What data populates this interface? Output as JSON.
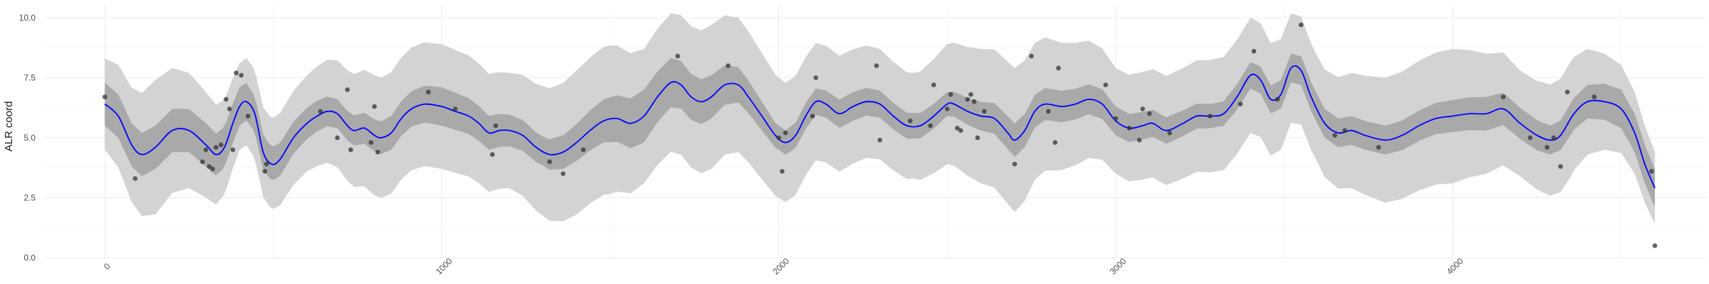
{
  "chart_data": {
    "type": "line",
    "title": "",
    "xlabel": "",
    "ylabel": "ALR coord",
    "xlim": [
      -180,
      4750
    ],
    "ylim": [
      0,
      10.5
    ],
    "grid": true,
    "legend": "none",
    "x_ticks": [
      0,
      1000,
      2000,
      3000,
      4000
    ],
    "x_tick_labels": [
      "0",
      "1000",
      "2000",
      "3000",
      "4000"
    ],
    "y_ticks": [
      0,
      2.5,
      5,
      7.5,
      10
    ],
    "y_tick_labels": [
      "0.0",
      "2.5",
      "5.0",
      "7.5",
      "10.0"
    ],
    "colors": {
      "mean_line": "#0000ff",
      "inner_band": "#a9a9a9",
      "outer_band": "#d3d3d3",
      "points": "#333333",
      "grid_major": "#ebebeb",
      "grid_minor": "#f5f5f5"
    },
    "mean_curve": [
      [
        0,
        6.4
      ],
      [
        40,
        5.9
      ],
      [
        80,
        4.7
      ],
      [
        110,
        4.3
      ],
      [
        150,
        4.6
      ],
      [
        200,
        5.3
      ],
      [
        250,
        5.3
      ],
      [
        300,
        4.7
      ],
      [
        330,
        4.3
      ],
      [
        355,
        4.6
      ],
      [
        380,
        5.6
      ],
      [
        400,
        6.3
      ],
      [
        420,
        6.5
      ],
      [
        445,
        6.0
      ],
      [
        470,
        4.4
      ],
      [
        495,
        3.9
      ],
      [
        520,
        4.1
      ],
      [
        560,
        5.0
      ],
      [
        600,
        5.6
      ],
      [
        630,
        5.9
      ],
      [
        660,
        6.1
      ],
      [
        690,
        6.0
      ],
      [
        720,
        5.5
      ],
      [
        740,
        5.3
      ],
      [
        770,
        5.4
      ],
      [
        800,
        5.1
      ],
      [
        820,
        5.0
      ],
      [
        850,
        5.2
      ],
      [
        880,
        5.8
      ],
      [
        910,
        6.2
      ],
      [
        950,
        6.4
      ],
      [
        1000,
        6.3
      ],
      [
        1040,
        6.1
      ],
      [
        1080,
        5.9
      ],
      [
        1110,
        5.6
      ],
      [
        1140,
        5.2
      ],
      [
        1170,
        5.3
      ],
      [
        1200,
        5.3
      ],
      [
        1240,
        5.1
      ],
      [
        1280,
        4.6
      ],
      [
        1320,
        4.3
      ],
      [
        1360,
        4.4
      ],
      [
        1400,
        4.8
      ],
      [
        1440,
        5.3
      ],
      [
        1480,
        5.7
      ],
      [
        1520,
        5.8
      ],
      [
        1560,
        5.6
      ],
      [
        1600,
        5.9
      ],
      [
        1640,
        6.7
      ],
      [
        1680,
        7.3
      ],
      [
        1710,
        7.2
      ],
      [
        1740,
        6.7
      ],
      [
        1770,
        6.5
      ],
      [
        1800,
        6.7
      ],
      [
        1840,
        7.2
      ],
      [
        1880,
        7.2
      ],
      [
        1910,
        6.7
      ],
      [
        1950,
        5.9
      ],
      [
        1990,
        5.1
      ],
      [
        2020,
        4.8
      ],
      [
        2050,
        5.1
      ],
      [
        2080,
        5.9
      ],
      [
        2110,
        6.5
      ],
      [
        2140,
        6.4
      ],
      [
        2180,
        6.0
      ],
      [
        2220,
        6.3
      ],
      [
        2260,
        6.5
      ],
      [
        2300,
        6.4
      ],
      [
        2340,
        5.9
      ],
      [
        2380,
        5.5
      ],
      [
        2420,
        5.5
      ],
      [
        2460,
        5.9
      ],
      [
        2500,
        6.4
      ],
      [
        2520,
        6.4
      ],
      [
        2560,
        6.1
      ],
      [
        2600,
        5.9
      ],
      [
        2640,
        5.8
      ],
      [
        2680,
        5.2
      ],
      [
        2700,
        4.9
      ],
      [
        2730,
        5.3
      ],
      [
        2760,
        6.1
      ],
      [
        2790,
        6.4
      ],
      [
        2840,
        6.3
      ],
      [
        2880,
        6.4
      ],
      [
        2920,
        6.6
      ],
      [
        2960,
        6.4
      ],
      [
        3000,
        5.7
      ],
      [
        3040,
        5.4
      ],
      [
        3080,
        5.5
      ],
      [
        3110,
        5.6
      ],
      [
        3150,
        5.3
      ],
      [
        3200,
        5.6
      ],
      [
        3240,
        5.9
      ],
      [
        3280,
        5.9
      ],
      [
        3320,
        6.0
      ],
      [
        3360,
        6.7
      ],
      [
        3400,
        7.6
      ],
      [
        3430,
        7.4
      ],
      [
        3460,
        6.6
      ],
      [
        3490,
        6.8
      ],
      [
        3520,
        7.9
      ],
      [
        3550,
        7.8
      ],
      [
        3580,
        6.7
      ],
      [
        3620,
        5.6
      ],
      [
        3660,
        5.2
      ],
      [
        3700,
        5.3
      ],
      [
        3740,
        5.1
      ],
      [
        3800,
        4.9
      ],
      [
        3850,
        5.1
      ],
      [
        3900,
        5.5
      ],
      [
        3950,
        5.8
      ],
      [
        4000,
        5.9
      ],
      [
        4050,
        6.0
      ],
      [
        4100,
        6.0
      ],
      [
        4150,
        6.2
      ],
      [
        4200,
        5.6
      ],
      [
        4250,
        5.1
      ],
      [
        4290,
        4.9
      ],
      [
        4320,
        5.1
      ],
      [
        4360,
        6.0
      ],
      [
        4400,
        6.5
      ],
      [
        4450,
        6.5
      ],
      [
        4500,
        6.2
      ],
      [
        4540,
        5.2
      ],
      [
        4570,
        3.9
      ],
      [
        4600,
        2.9
      ]
    ],
    "inner_band_halfwidth": [
      [
        0,
        0.9
      ],
      [
        300,
        0.9
      ],
      [
        500,
        0.7
      ],
      [
        700,
        0.6
      ],
      [
        1000,
        0.8
      ],
      [
        1300,
        0.6
      ],
      [
        1600,
        1.1
      ],
      [
        1800,
        0.9
      ],
      [
        2000,
        0.5
      ],
      [
        2200,
        0.6
      ],
      [
        2500,
        0.5
      ],
      [
        2700,
        0.7
      ],
      [
        3000,
        0.6
      ],
      [
        3300,
        0.5
      ],
      [
        3500,
        0.6
      ],
      [
        3800,
        0.6
      ],
      [
        4100,
        0.7
      ],
      [
        4300,
        0.6
      ],
      [
        4500,
        0.8
      ],
      [
        4600,
        0.8
      ]
    ],
    "outer_band_halfwidth": [
      [
        0,
        1.9
      ],
      [
        150,
        2.8
      ],
      [
        300,
        2.2
      ],
      [
        400,
        1.8
      ],
      [
        600,
        2.0
      ],
      [
        800,
        2.5
      ],
      [
        1000,
        2.6
      ],
      [
        1200,
        2.4
      ],
      [
        1400,
        3.0
      ],
      [
        1500,
        3.1
      ],
      [
        1600,
        2.8
      ],
      [
        1800,
        3.0
      ],
      [
        2000,
        2.5
      ],
      [
        2200,
        2.4
      ],
      [
        2400,
        2.2
      ],
      [
        2600,
        2.8
      ],
      [
        2700,
        3.0
      ],
      [
        2900,
        2.5
      ],
      [
        3000,
        2.2
      ],
      [
        3200,
        2.3
      ],
      [
        3400,
        2.4
      ],
      [
        3600,
        2.2
      ],
      [
        3800,
        2.6
      ],
      [
        4000,
        2.8
      ],
      [
        4200,
        2.2
      ],
      [
        4350,
        2.4
      ],
      [
        4450,
        2.0
      ],
      [
        4600,
        1.5
      ]
    ],
    "observations": [
      [
        0,
        6.7
      ],
      [
        90,
        3.3
      ],
      [
        290,
        4.0
      ],
      [
        300,
        4.5
      ],
      [
        310,
        3.8
      ],
      [
        320,
        3.7
      ],
      [
        330,
        4.6
      ],
      [
        345,
        4.7
      ],
      [
        360,
        6.6
      ],
      [
        370,
        6.2
      ],
      [
        380,
        4.5
      ],
      [
        390,
        7.7
      ],
      [
        405,
        7.6
      ],
      [
        425,
        5.9
      ],
      [
        475,
        3.6
      ],
      [
        480,
        3.9
      ],
      [
        640,
        6.1
      ],
      [
        690,
        5.0
      ],
      [
        720,
        7.0
      ],
      [
        730,
        4.5
      ],
      [
        790,
        4.8
      ],
      [
        800,
        6.3
      ],
      [
        810,
        4.4
      ],
      [
        960,
        6.9
      ],
      [
        1040,
        6.2
      ],
      [
        1160,
        5.5
      ],
      [
        1150,
        4.3
      ],
      [
        1320,
        4.0
      ],
      [
        1360,
        3.5
      ],
      [
        1420,
        4.5
      ],
      [
        1700,
        8.4
      ],
      [
        1850,
        8.0
      ],
      [
        2000,
        5.0
      ],
      [
        2010,
        3.6
      ],
      [
        2020,
        5.2
      ],
      [
        2100,
        5.9
      ],
      [
        2110,
        7.5
      ],
      [
        2290,
        8.0
      ],
      [
        2300,
        4.9
      ],
      [
        2390,
        5.7
      ],
      [
        2450,
        5.5
      ],
      [
        2460,
        7.2
      ],
      [
        2500,
        6.2
      ],
      [
        2510,
        6.8
      ],
      [
        2530,
        5.4
      ],
      [
        2540,
        5.3
      ],
      [
        2560,
        6.6
      ],
      [
        2570,
        6.8
      ],
      [
        2580,
        6.5
      ],
      [
        2590,
        5.0
      ],
      [
        2610,
        6.1
      ],
      [
        2700,
        3.9
      ],
      [
        2750,
        8.4
      ],
      [
        2800,
        6.1
      ],
      [
        2820,
        4.8
      ],
      [
        2830,
        7.9
      ],
      [
        2970,
        7.2
      ],
      [
        3000,
        5.8
      ],
      [
        3040,
        5.4
      ],
      [
        3070,
        4.9
      ],
      [
        3080,
        6.2
      ],
      [
        3100,
        6.0
      ],
      [
        3160,
        5.2
      ],
      [
        3280,
        5.9
      ],
      [
        3370,
        6.4
      ],
      [
        3410,
        8.6
      ],
      [
        3480,
        6.6
      ],
      [
        3550,
        9.7
      ],
      [
        3650,
        5.1
      ],
      [
        3680,
        5.3
      ],
      [
        3780,
        4.6
      ],
      [
        4150,
        6.7
      ],
      [
        4230,
        5.0
      ],
      [
        4280,
        4.6
      ],
      [
        4300,
        5.0
      ],
      [
        4320,
        3.8
      ],
      [
        4340,
        6.9
      ],
      [
        4420,
        6.7
      ],
      [
        4590,
        3.6
      ],
      [
        4600,
        0.5
      ]
    ]
  }
}
